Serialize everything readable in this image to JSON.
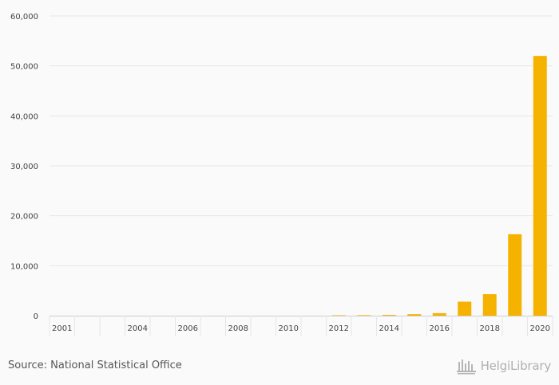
{
  "chart_data": {
    "type": "bar",
    "title": "",
    "xlabel": "",
    "ylabel": "",
    "ylim": [
      0,
      60000
    ],
    "y_ticks": [
      "0",
      "10,000",
      "20,000",
      "30,000",
      "40,000",
      "50,000",
      "60,000"
    ],
    "y_tick_values": [
      0,
      10000,
      20000,
      30000,
      40000,
      50000,
      60000
    ],
    "categories": [
      "2001",
      "2002",
      "2003",
      "2004",
      "2005",
      "2006",
      "2007",
      "2008",
      "2009",
      "2010",
      "2011",
      "2012",
      "2013",
      "2014",
      "2015",
      "2016",
      "2017",
      "2018",
      "2019",
      "2020"
    ],
    "x_tick_labels": [
      "2001",
      "",
      "",
      "2004",
      "",
      "2006",
      "",
      "2008",
      "",
      "2010",
      "",
      "2012",
      "",
      "2014",
      "",
      "2016",
      "",
      "2018",
      "",
      "2020"
    ],
    "values": [
      0,
      0,
      0,
      0,
      0,
      0,
      0,
      0,
      0,
      0,
      0,
      80,
      100,
      150,
      300,
      500,
      2800,
      4300,
      16300,
      52000
    ],
    "bar_color": "#f5b300",
    "grid": true
  },
  "footer": {
    "source": "Source: National Statistical Office",
    "logo_text": "HelgiLibrary"
  },
  "colors": {
    "background": "#fafafa",
    "grid": "#e6e6e6",
    "axis": "#cccccc"
  }
}
